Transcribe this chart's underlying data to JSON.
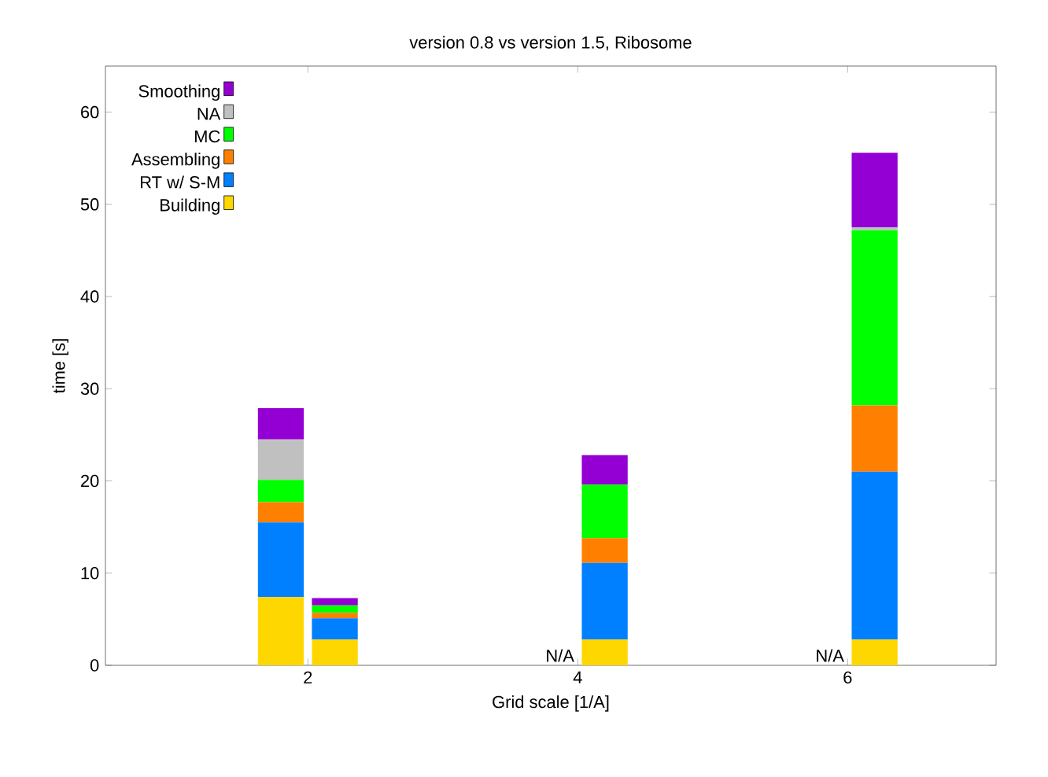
{
  "chart_data": {
    "type": "bar",
    "title": "version 0.8 vs version 1.5, Ribosome",
    "xlabel": "Grid scale [1/A]",
    "ylabel": "time [s]",
    "stacked": true,
    "xlim": [
      0.5,
      7.1
    ],
    "xticks": [
      2,
      4,
      6
    ],
    "ylim": [
      0,
      65
    ],
    "yticks": [
      0,
      10,
      20,
      30,
      40,
      50,
      60
    ],
    "legend": "top left",
    "grid": false,
    "x": [
      1.8,
      2.2,
      4.2,
      6.2
    ],
    "series": [
      {
        "name": "Building",
        "color": "#ffd700",
        "values": [
          7.4,
          2.8,
          2.8,
          2.8
        ]
      },
      {
        "name": "RT w/ S-M",
        "color": "#0080ff",
        "values": [
          8.1,
          2.3,
          8.3,
          18.2
        ]
      },
      {
        "name": "Assembling",
        "color": "#ff8000",
        "values": [
          2.2,
          0.6,
          2.7,
          7.2
        ]
      },
      {
        "name": "MC",
        "color": "#00ff00",
        "values": [
          2.4,
          0.8,
          5.8,
          19.0
        ]
      },
      {
        "name": "NA",
        "color": "#c0c0c0",
        "values": [
          4.4,
          null,
          null,
          0.3
        ]
      },
      {
        "name": "Smoothing",
        "color": "#9400d3",
        "values": [
          3.4,
          0.8,
          3.2,
          8.1
        ]
      }
    ],
    "annotations": [
      "N/A",
      "N/A"
    ]
  }
}
